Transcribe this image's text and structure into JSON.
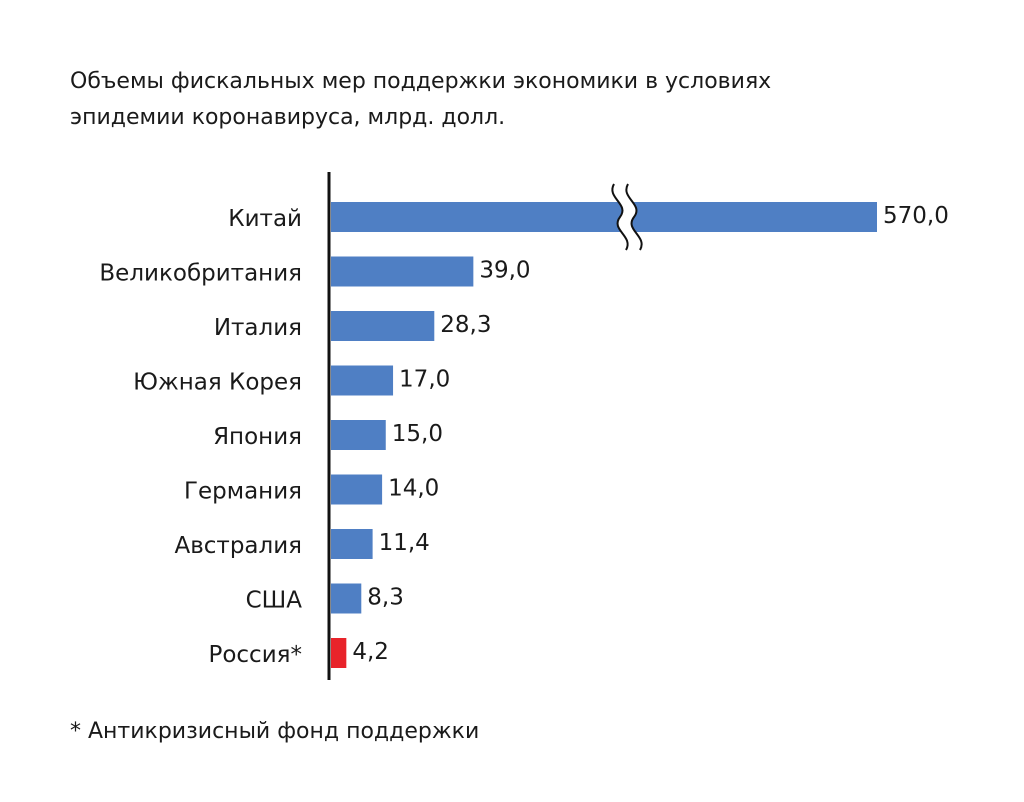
{
  "chart_data": {
    "type": "bar",
    "orientation": "horizontal",
    "title_lines": [
      "Объемы фискальных мер поддержки экономики в условиях",
      "эпидемии коронавируса, млрд. долл."
    ],
    "categories": [
      "Китай",
      "Великобритания",
      "Италия",
      "Южная Корея",
      "Япония",
      "Германия",
      "Австралия",
      "США",
      "Россия*"
    ],
    "values": [
      570.0,
      39.0,
      28.3,
      17.0,
      15.0,
      14.0,
      11.4,
      8.3,
      4.2
    ],
    "value_labels": [
      "570,0",
      "39,0",
      "28,3",
      "17,0",
      "15,0",
      "14,0",
      "11,4",
      "8,3",
      "4,2"
    ],
    "bar_colors": [
      "#4f7fc4",
      "#4f7fc4",
      "#4f7fc4",
      "#4f7fc4",
      "#4f7fc4",
      "#4f7fc4",
      "#4f7fc4",
      "#4f7fc4",
      "#e8232a"
    ],
    "label_colors": [
      "#1a1a1a",
      "#1a1a1a",
      "#1a1a1a",
      "#1a1a1a",
      "#1a1a1a",
      "#1a1a1a",
      "#1a1a1a",
      "#1a1a1a",
      "#e8232a"
    ],
    "axis_break": {
      "category": "Китай",
      "symbol": "double-wavy-break"
    },
    "grid": false,
    "legend": "none",
    "footnote": "* Антикризисный фонд поддержки"
  }
}
